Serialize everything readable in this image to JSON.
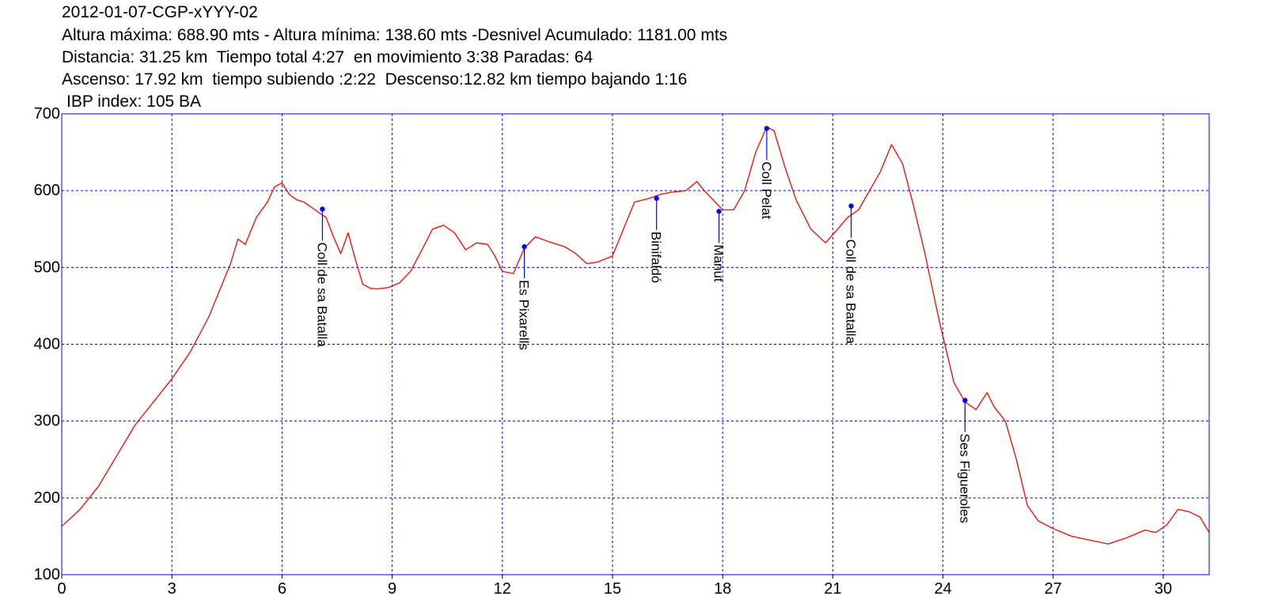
{
  "header": {
    "line1": "2012-01-07-CGP-xYYY-02",
    "line2": "Altura máxima: 688.90 mts - Altura mínima: 138.60 mts -Desnivel Acumulado: 1181.00 mts",
    "line3": "Distancia: 31.25 km  Tiempo total 4:27  en movimiento 3:38 Paradas: 64",
    "line4": "Ascenso: 17.92 km  tiempo subiendo :2:22  Descenso:12.82 km tiempo bajando 1:16",
    "line5": "IBP index: 105 BA"
  },
  "chart_data": {
    "type": "line",
    "xlim": [
      0,
      31.25
    ],
    "ylim": [
      100,
      700
    ],
    "xticks": [
      0,
      3,
      6,
      9,
      12,
      15,
      18,
      21,
      24,
      27,
      30
    ],
    "yticks": [
      100,
      200,
      300,
      400,
      500,
      600,
      700
    ],
    "grid": true,
    "colors": {
      "profile": "#ff0000",
      "axes": "#0000ff",
      "grid": "#0000ff",
      "marker": "#0000ff"
    },
    "series": [
      {
        "x": [
          0,
          0.5,
          1,
          1.5,
          2,
          2.5,
          3,
          3.5,
          4,
          4.3,
          4.6,
          4.8,
          5.0,
          5.3,
          5.6,
          5.8,
          6.0,
          6.2,
          6.4,
          6.6,
          6.9,
          7.2,
          7.4,
          7.6,
          7.8,
          8.0,
          8.2,
          8.4,
          8.6,
          8.9,
          9.2,
          9.5,
          9.8,
          10.1,
          10.4,
          10.7,
          11.0,
          11.3,
          11.6,
          11.8,
          12.0,
          12.3,
          12.6,
          12.9,
          13.3,
          13.7,
          14.0,
          14.3,
          14.6,
          15.0,
          15.3,
          15.6,
          16.0,
          16.3,
          16.6,
          17.0,
          17.3,
          17.5,
          17.7,
          18.0,
          18.3,
          18.6,
          18.9,
          19.2,
          19.4,
          19.7,
          20.0,
          20.4,
          20.8,
          21.1,
          21.4,
          21.7,
          22.0,
          22.3,
          22.6,
          22.9,
          23.2,
          23.5,
          23.9,
          24.3,
          24.6,
          24.9,
          25.2,
          25.4,
          25.7,
          26.0,
          26.3,
          26.6,
          27.0,
          27.5,
          28.0,
          28.5,
          29.0,
          29.5,
          29.8,
          30.1,
          30.4,
          30.7,
          31.0,
          31.25
        ],
        "y": [
          163,
          185,
          215,
          255,
          295,
          325,
          355,
          390,
          435,
          470,
          505,
          537,
          530,
          565,
          585,
          605,
          610,
          595,
          588,
          585,
          575,
          565,
          540,
          518,
          545,
          510,
          478,
          473,
          472,
          474,
          480,
          495,
          522,
          550,
          555,
          545,
          523,
          532,
          530,
          515,
          495,
          492,
          525,
          540,
          533,
          527,
          518,
          505,
          507,
          515,
          550,
          585,
          590,
          595,
          598,
          600,
          612,
          600,
          590,
          575,
          575,
          600,
          650,
          683,
          678,
          630,
          588,
          550,
          532,
          548,
          565,
          575,
          600,
          625,
          660,
          635,
          580,
          520,
          430,
          350,
          325,
          315,
          337,
          318,
          300,
          250,
          190,
          170,
          160,
          150,
          145,
          140,
          148,
          158,
          155,
          165,
          185,
          182,
          175,
          155
        ]
      }
    ],
    "annotations": [
      {
        "label": "Coll de sa Batalla",
        "x": 7.1,
        "y": 576
      },
      {
        "label": "Es Pixarells",
        "x": 12.6,
        "y": 527
      },
      {
        "label": "Binifaldó",
        "x": 16.2,
        "y": 590
      },
      {
        "label": "Manut",
        "x": 17.9,
        "y": 573
      },
      {
        "label": "Coll Pelat",
        "x": 19.2,
        "y": 681
      },
      {
        "label": "Coll de sa Batalla",
        "x": 21.5,
        "y": 580
      },
      {
        "label": "Ses Figueroles",
        "x": 24.6,
        "y": 327
      }
    ]
  }
}
